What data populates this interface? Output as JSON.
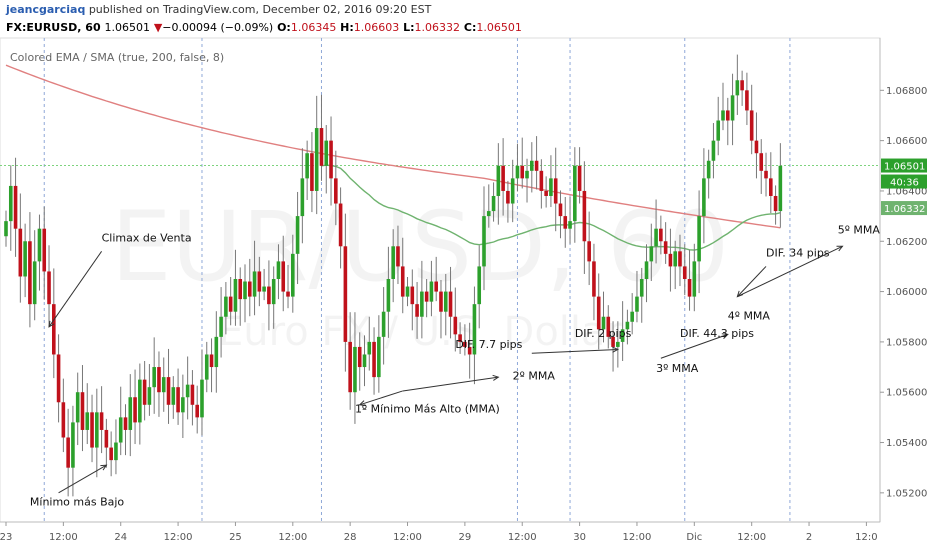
{
  "header": {
    "author": "jeancgarciaq",
    "published": "published on TradingView.com, December 02, 2016 09:20 EST",
    "symbol": "FX:EURUSD, 60",
    "last": "1.06501",
    "change": "−0.00094 (−0.09%)",
    "open_label": "O:",
    "open": "1.06345",
    "high_label": "H:",
    "high": "1.06603",
    "low_label": "L:",
    "low": "1.06332",
    "close_label": "C:",
    "close": "1.06501"
  },
  "indicator": "Colored EMA / SMA (true, 200, false, 8)",
  "watermark": {
    "main": "EUR/USD, 60",
    "sub": "Euro FX / U.S. Dollar"
  },
  "colors": {
    "bull": "#2ca02c",
    "bear": "#c0111b",
    "sma": "#e08080",
    "ema": "#6fb36f",
    "last_line": "#7ed37e",
    "session_line": "#8fa8d8",
    "arrow": "#333333"
  },
  "price_badges": {
    "last": "1.06501",
    "countdown": "40:36",
    "ma": "1.06332"
  },
  "chart_data": {
    "type": "candlestick",
    "ylim": [
      1.051,
      1.07
    ],
    "yticks": [
      "1.06800",
      "1.06600",
      "1.06400",
      "1.06200",
      "1.06000",
      "1.05800",
      "1.05600",
      "1.05400",
      "1.05200"
    ],
    "ytick_values": [
      1.068,
      1.066,
      1.064,
      1.062,
      1.06,
      1.058,
      1.056,
      1.054,
      1.052
    ],
    "xticks": [
      {
        "label": "23",
        "i": 0
      },
      {
        "label": "12:00",
        "i": 12
      },
      {
        "label": "24",
        "i": 24
      },
      {
        "label": "12:00",
        "i": 36
      },
      {
        "label": "25",
        "i": 48
      },
      {
        "label": "12:00",
        "i": 60
      },
      {
        "label": "28",
        "i": 72
      },
      {
        "label": "12:00",
        "i": 84
      },
      {
        "label": "29",
        "i": 96
      },
      {
        "label": "12:00",
        "i": 108
      },
      {
        "label": "30",
        "i": 120
      },
      {
        "label": "12:00",
        "i": 132
      },
      {
        "label": "Dic",
        "i": 144
      },
      {
        "label": "12:00",
        "i": 156
      },
      {
        "label": "2",
        "i": 168
      },
      {
        "label": "12:0",
        "i": 180
      }
    ],
    "session_bars": [
      8,
      41,
      66,
      107,
      118,
      142,
      164
    ],
    "last_price": 1.06501,
    "ma_price": 1.06332,
    "closes": [
      1.0628,
      1.0642,
      1.0625,
      1.0606,
      1.062,
      1.0595,
      1.0612,
      1.0625,
      1.0608,
      1.0595,
      1.0575,
      1.0556,
      1.0542,
      1.053,
      1.0548,
      1.056,
      1.0545,
      1.0552,
      1.0538,
      1.0552,
      1.0545,
      1.0538,
      1.0533,
      1.054,
      1.055,
      1.0545,
      1.0558,
      1.0548,
      1.0565,
      1.0555,
      1.0562,
      1.057,
      1.056,
      1.0566,
      1.0555,
      1.0562,
      1.0552,
      1.0558,
      1.0563,
      1.0555,
      1.055,
      1.0565,
      1.0575,
      1.057,
      1.0582,
      1.059,
      1.0598,
      1.0592,
      1.0605,
      1.0597,
      1.0604,
      1.0598,
      1.0608,
      1.06,
      1.0602,
      1.0595,
      1.0605,
      1.0612,
      1.06,
      1.0598,
      1.0615,
      1.063,
      1.0645,
      1.0655,
      1.064,
      1.0665,
      1.065,
      1.066,
      1.0645,
      1.0635,
      1.0618,
      1.058,
      1.056,
      1.0578,
      1.057,
      1.0575,
      1.058,
      1.0566,
      1.0582,
      1.0592,
      1.0605,
      1.0618,
      1.061,
      1.0598,
      1.0602,
      1.0595,
      1.059,
      1.06,
      1.0596,
      1.0604,
      1.06,
      1.0592,
      1.06,
      1.059,
      1.0583,
      1.058,
      1.0578,
      1.0575,
      1.0595,
      1.061,
      1.063,
      1.0632,
      1.0638,
      1.065,
      1.064,
      1.0635,
      1.0645,
      1.065,
      1.0645,
      1.0648,
      1.0652,
      1.0648,
      1.064,
      1.0638,
      1.0645,
      1.0635,
      1.063,
      1.0625,
      1.0628,
      1.065,
      1.064,
      1.062,
      1.0612,
      1.0598,
      1.0585,
      1.059,
      1.0582,
      1.0578,
      1.058,
      1.0585,
      1.0588,
      1.0592,
      1.0598,
      1.0605,
      1.0612,
      1.0618,
      1.0625,
      1.062,
      1.0615,
      1.061,
      1.0616,
      1.061,
      1.0605,
      1.0598,
      1.0612,
      1.063,
      1.0645,
      1.0652,
      1.066,
      1.0668,
      1.0672,
      1.0668,
      1.0678,
      1.0684,
      1.068,
      1.0672,
      1.066,
      1.0655,
      1.0648,
      1.0645,
      1.0638,
      1.0632,
      1.065
    ],
    "annotations": [
      {
        "text": "Climax de Venta",
        "i": 20,
        "y": 1.062
      },
      {
        "text": "Mínimo más Bajo",
        "i": 5,
        "y": 1.0515
      },
      {
        "text": "1º Mínimo Más Alto (MMA)",
        "i": 73,
        "y": 1.0552
      },
      {
        "text": "DIF. 7.7 pips",
        "i": 94,
        "y": 1.05775
      },
      {
        "text": "2º MMA",
        "i": 106,
        "y": 1.0565
      },
      {
        "text": "DIF. 2 pips",
        "i": 119,
        "y": 1.0582
      },
      {
        "text": "3º MMA",
        "i": 136,
        "y": 1.0568
      },
      {
        "text": "DIF. 44.3 pips",
        "i": 141,
        "y": 1.0582
      },
      {
        "text": "4º MMA",
        "i": 151,
        "y": 1.0589
      },
      {
        "text": "DIF. 34 pips",
        "i": 159,
        "y": 1.0614
      },
      {
        "text": "5º MMA",
        "i": 174,
        "y": 1.0623
      }
    ]
  }
}
